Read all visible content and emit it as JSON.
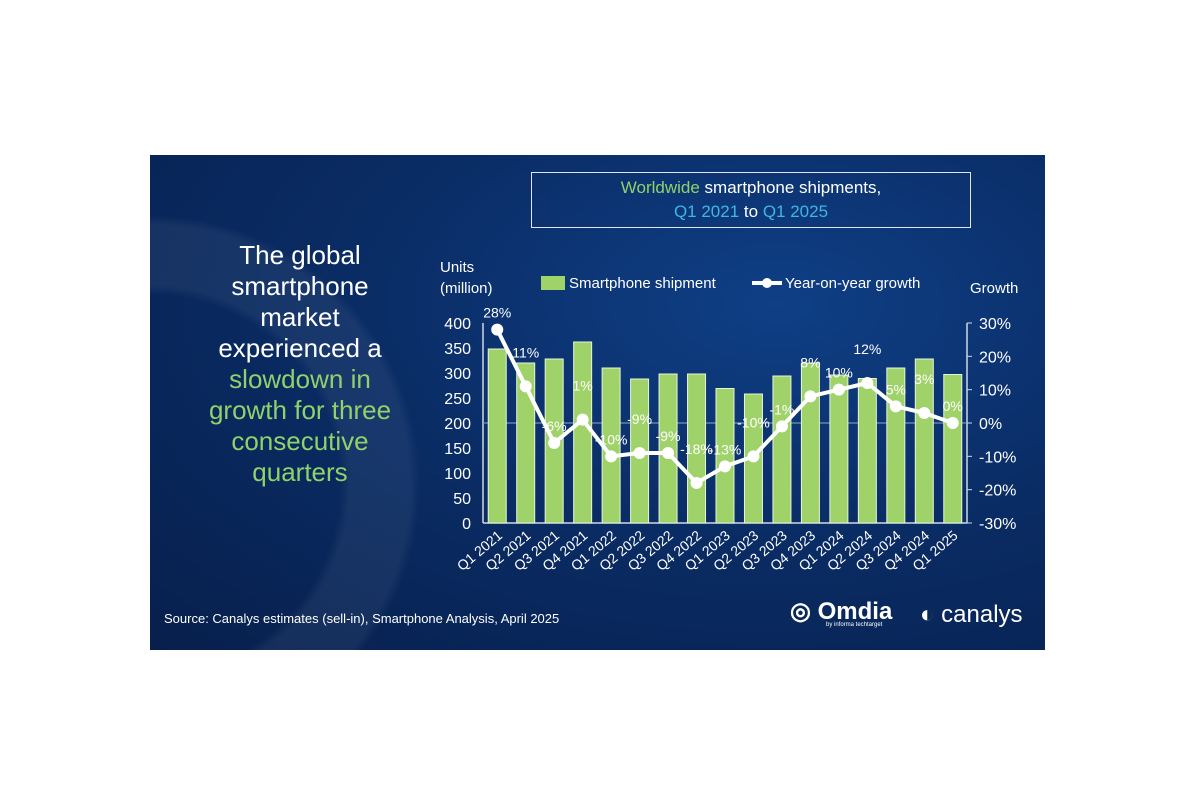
{
  "title": {
    "part1": "Worldwide",
    "part2": " smartphone shipments,",
    "part3": "Q1 2021",
    "part4": " to ",
    "part5": "Q1 2025"
  },
  "headline": {
    "white": "The global smartphone market experienced a",
    "green": "slowdown in growth for three consecutive quarters"
  },
  "source": "Source: Canalys estimates (sell-in), Smartphone Analysis, April 2025",
  "logos": {
    "omdia": "Omdia",
    "omdia_sub": "by informa techtarget",
    "canalys": "canalys"
  },
  "colors": {
    "bar": "#9fd36a",
    "line": "#ffffff",
    "bg": "#0a2d66"
  },
  "chart_data": {
    "type": "bar+line",
    "title": "Worldwide smartphone shipments, Q1 2021 to Q1 2025",
    "ylabel": "Units (million)",
    "y2label": "Growth",
    "ylim": [
      0,
      400
    ],
    "y2lim": [
      -30,
      30
    ],
    "yticks": [
      "0",
      "50",
      "100",
      "150",
      "200",
      "250",
      "300",
      "350",
      "400"
    ],
    "y2ticks": [
      "-30%",
      "-20%",
      "-10%",
      "0%",
      "10%",
      "20%",
      "30%"
    ],
    "legend": {
      "bar": "Smartphone shipment",
      "line": "Year-on-year growth",
      "placement": "top"
    },
    "categories": [
      "Q1 2021",
      "Q2 2021",
      "Q3 2021",
      "Q4 2021",
      "Q1 2022",
      "Q2 2022",
      "Q3 2022",
      "Q4 2022",
      "Q1 2023",
      "Q2 2023",
      "Q3 2023",
      "Q4 2023",
      "Q1 2024",
      "Q2 2024",
      "Q3 2024",
      "Q4 2024",
      "Q1 2025"
    ],
    "series": [
      {
        "name": "Smartphone shipment",
        "values": [
          348,
          320,
          328,
          362,
          310,
          288,
          298,
          298,
          269,
          258,
          294,
          320,
          296,
          289,
          310,
          328,
          297
        ]
      },
      {
        "name": "Year-on-year growth",
        "values": [
          28,
          11,
          -6,
          1,
          -10,
          -9,
          -9,
          -18,
          -13,
          -10,
          -1,
          8,
          10,
          12,
          5,
          3,
          0
        ],
        "labels": [
          "28%",
          "11%",
          "-6%",
          "1%",
          "-10%",
          "-9%",
          "-9%",
          "-18%",
          "-13%",
          "-10%",
          "-1%",
          "8%",
          "10%",
          "12%",
          "5%",
          "3%",
          "0%"
        ]
      }
    ]
  }
}
